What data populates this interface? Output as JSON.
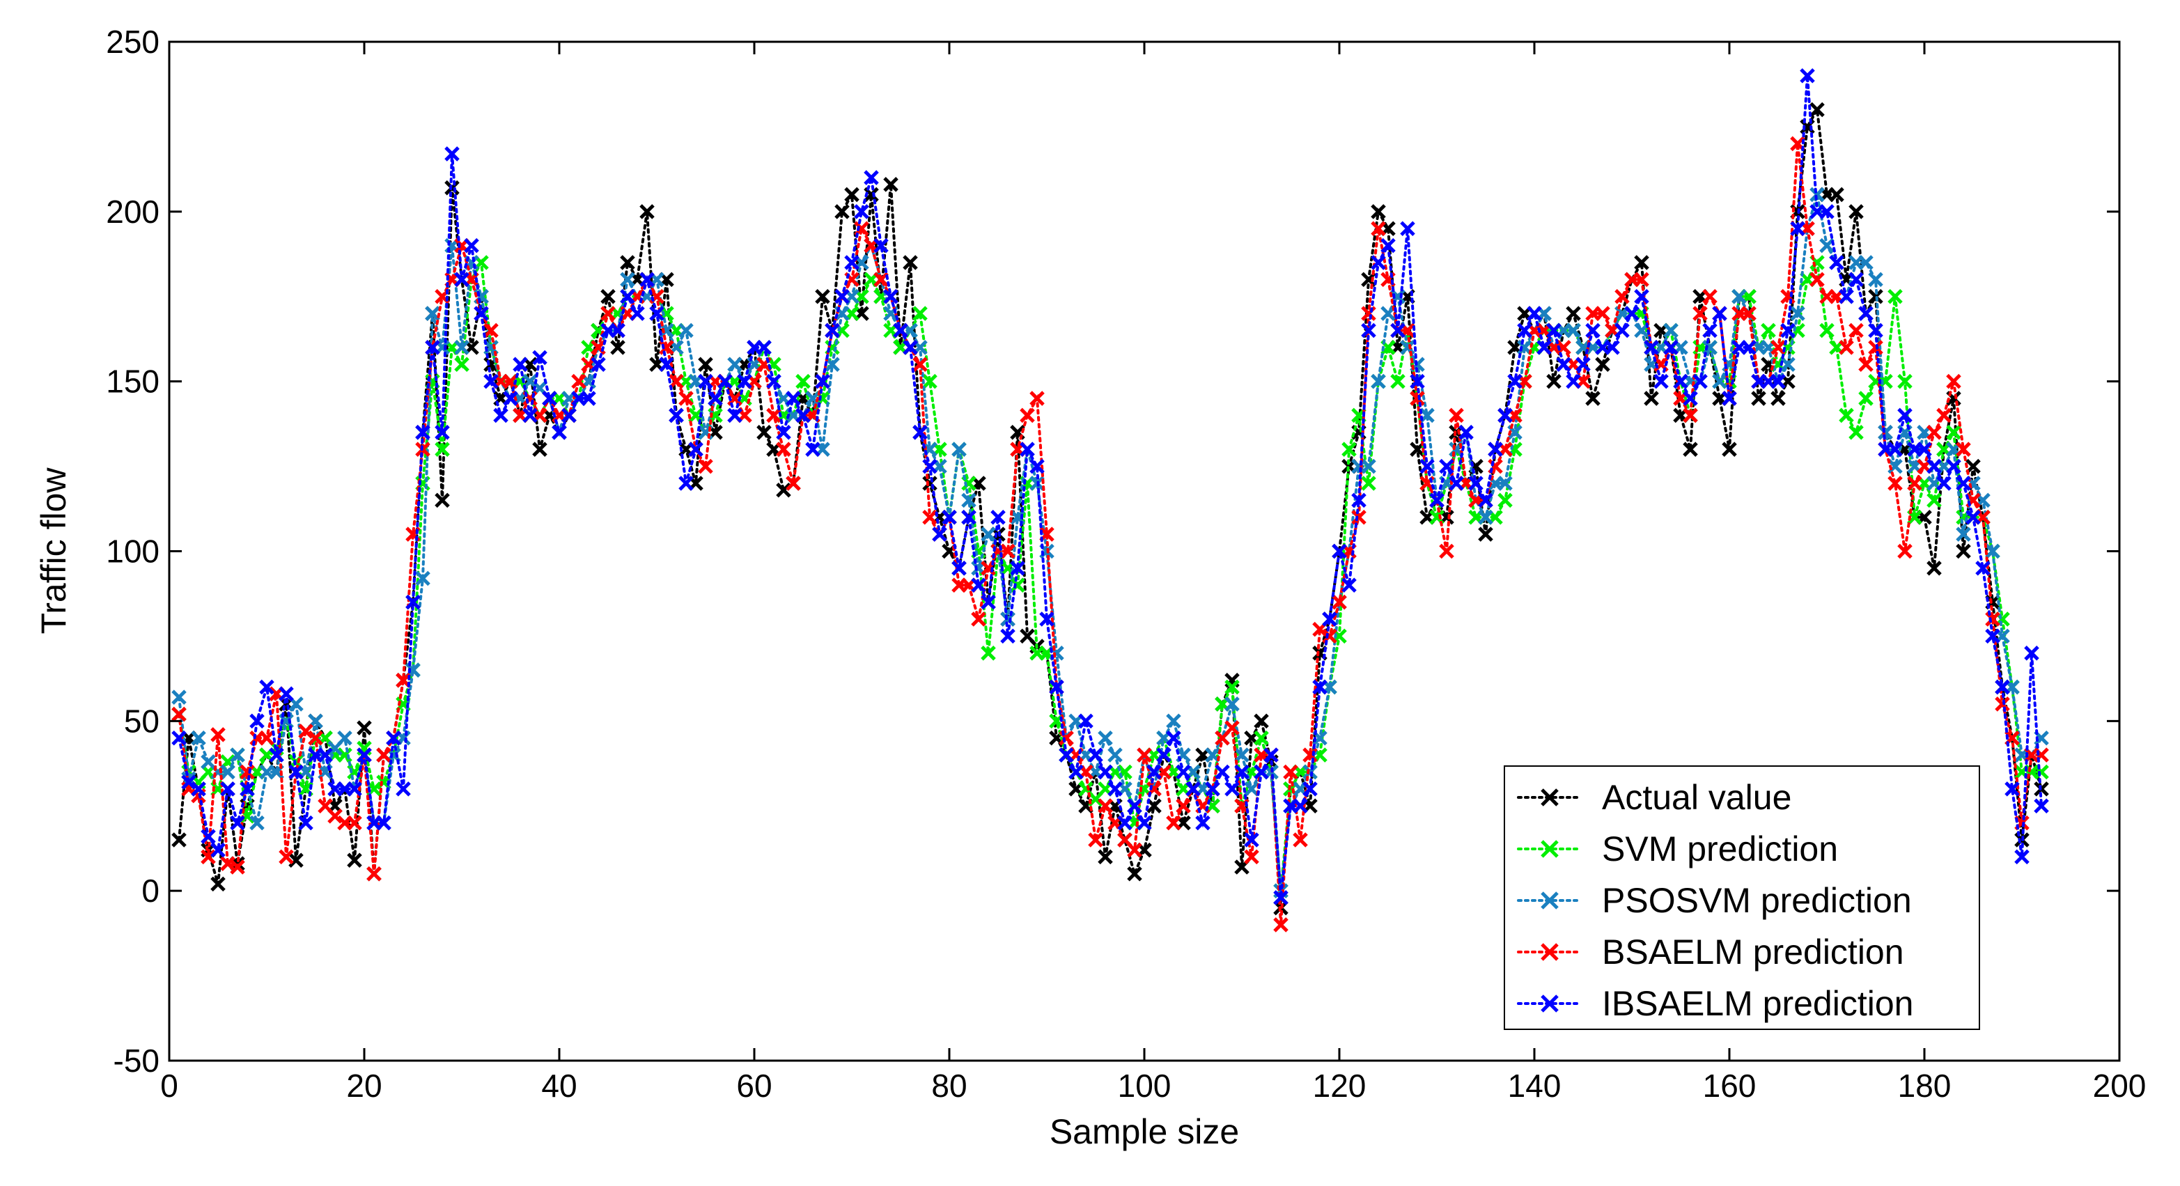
{
  "chart_data": {
    "type": "line",
    "title": "",
    "xlabel": "Sample size",
    "ylabel": "Traffic flow",
    "xlim": [
      0,
      200
    ],
    "ylim": [
      -50,
      250
    ],
    "xticks": [
      0,
      20,
      40,
      60,
      80,
      100,
      120,
      140,
      160,
      180,
      200
    ],
    "yticks": [
      -50,
      0,
      50,
      100,
      150,
      200,
      250
    ],
    "grid": false,
    "legend_position": "bottom-right",
    "marker": "x",
    "line_style": "dotted",
    "x": [
      1,
      2,
      3,
      4,
      5,
      6,
      7,
      8,
      9,
      10,
      11,
      12,
      13,
      14,
      15,
      16,
      17,
      18,
      19,
      20,
      21,
      22,
      23,
      24,
      25,
      26,
      27,
      28,
      29,
      30,
      31,
      32,
      33,
      34,
      35,
      36,
      37,
      38,
      39,
      40,
      41,
      42,
      43,
      44,
      45,
      46,
      47,
      48,
      49,
      50,
      51,
      52,
      53,
      54,
      55,
      56,
      57,
      58,
      59,
      60,
      61,
      62,
      63,
      64,
      65,
      66,
      67,
      68,
      69,
      70,
      71,
      72,
      73,
      74,
      75,
      76,
      77,
      78,
      79,
      80,
      81,
      82,
      83,
      84,
      85,
      86,
      87,
      88,
      89,
      90,
      91,
      92,
      93,
      94,
      95,
      96,
      97,
      98,
      99,
      100,
      101,
      102,
      103,
      104,
      105,
      106,
      107,
      108,
      109,
      110,
      111,
      112,
      113,
      114,
      115,
      116,
      117,
      118,
      119,
      120,
      121,
      122,
      123,
      124,
      125,
      126,
      127,
      128,
      129,
      130,
      131,
      132,
      133,
      134,
      135,
      136,
      137,
      138,
      139,
      140,
      141,
      142,
      143,
      144,
      145,
      146,
      147,
      148,
      149,
      150,
      151,
      152,
      153,
      154,
      155,
      156,
      157,
      158,
      159,
      160,
      161,
      162,
      163,
      164,
      165,
      166,
      167,
      168,
      169,
      170,
      171,
      172,
      173,
      174,
      175,
      176,
      177,
      178,
      179,
      180,
      181,
      182,
      183,
      184,
      185,
      186,
      187,
      188,
      189,
      190,
      191,
      192
    ],
    "series": [
      {
        "name": "Actual value",
        "color": "#000000",
        "values": [
          15,
          45,
          30,
          12,
          2,
          30,
          8,
          25,
          35,
          40,
          35,
          55,
          9,
          30,
          50,
          45,
          25,
          30,
          9,
          48,
          5,
          40,
          45,
          62,
          85,
          135,
          170,
          115,
          207,
          180,
          160,
          175,
          155,
          145,
          150,
          140,
          155,
          130,
          140,
          135,
          140,
          145,
          150,
          165,
          175,
          160,
          185,
          180,
          200,
          155,
          180,
          140,
          130,
          120,
          155,
          135,
          150,
          145,
          155,
          160,
          135,
          130,
          118,
          120,
          145,
          140,
          175,
          165,
          200,
          205,
          170,
          205,
          175,
          208,
          160,
          185,
          135,
          120,
          110,
          100,
          95,
          110,
          120,
          85,
          105,
          80,
          135,
          75,
          72,
          70,
          45,
          40,
          30,
          25,
          35,
          10,
          25,
          15,
          5,
          12,
          25,
          40,
          35,
          20,
          30,
          40,
          25,
          55,
          62,
          7,
          45,
          50,
          38,
          -5,
          30,
          35,
          25,
          70,
          80,
          100,
          125,
          135,
          180,
          200,
          195,
          160,
          175,
          130,
          110,
          115,
          110,
          135,
          120,
          125,
          105,
          130,
          140,
          160,
          170,
          165,
          170,
          150,
          165,
          170,
          160,
          145,
          155,
          165,
          170,
          180,
          185,
          145,
          165,
          160,
          140,
          130,
          175,
          160,
          145,
          130,
          175,
          175,
          145,
          155,
          145,
          150,
          200,
          225,
          230,
          205,
          205,
          180,
          200,
          170,
          175,
          135,
          130,
          130,
          110,
          110,
          95,
          130,
          145,
          100,
          125,
          110,
          85,
          60,
          45,
          15,
          40,
          30
        ]
      },
      {
        "name": "SVM prediction",
        "color": "#00ee00",
        "values": [
          52,
          35,
          32,
          35,
          30,
          38,
          40,
          22,
          35,
          40,
          42,
          50,
          38,
          30,
          45,
          45,
          40,
          40,
          35,
          42,
          30,
          32,
          40,
          55,
          65,
          120,
          150,
          130,
          160,
          155,
          180,
          185,
          160,
          150,
          150,
          150,
          145,
          140,
          145,
          145,
          140,
          145,
          160,
          165,
          170,
          170,
          175,
          175,
          180,
          175,
          170,
          165,
          150,
          140,
          135,
          140,
          150,
          150,
          145,
          150,
          160,
          155,
          140,
          140,
          150,
          140,
          145,
          160,
          165,
          170,
          175,
          180,
          175,
          165,
          160,
          165,
          170,
          150,
          130,
          110,
          130,
          120,
          100,
          70,
          100,
          95,
          90,
          120,
          70,
          70,
          50,
          40,
          35,
          30,
          27,
          30,
          35,
          35,
          20,
          30,
          40,
          45,
          35,
          30,
          35,
          30,
          25,
          55,
          60,
          25,
          35,
          45,
          35,
          0,
          30,
          35,
          35,
          40,
          60,
          75,
          130,
          140,
          120,
          150,
          160,
          150,
          165,
          145,
          120,
          110,
          120,
          130,
          120,
          110,
          110,
          110,
          115,
          130,
          150,
          160,
          165,
          165,
          165,
          165,
          160,
          160,
          160,
          165,
          170,
          170,
          170,
          160,
          160,
          165,
          150,
          140,
          160,
          160,
          150,
          150,
          175,
          175,
          160,
          165,
          155,
          160,
          165,
          180,
          185,
          165,
          160,
          140,
          135,
          145,
          150,
          150,
          175,
          150,
          110,
          120,
          115,
          130,
          135,
          110,
          110,
          110,
          100,
          80,
          60,
          35,
          35,
          35
        ]
      },
      {
        "name": "PSOSVM prediction",
        "color": "#1a80c0",
        "values": [
          57,
          33,
          45,
          38,
          35,
          35,
          40,
          30,
          20,
          35,
          35,
          50,
          55,
          35,
          50,
          35,
          42,
          45,
          30,
          40,
          20,
          20,
          40,
          45,
          65,
          92,
          170,
          160,
          190,
          160,
          185,
          175,
          160,
          150,
          145,
          145,
          150,
          148,
          145,
          135,
          145,
          145,
          150,
          160,
          165,
          165,
          180,
          175,
          175,
          180,
          165,
          160,
          165,
          150,
          135,
          145,
          150,
          155,
          150,
          155,
          160,
          150,
          145,
          140,
          140,
          145,
          130,
          155,
          170,
          175,
          185,
          190,
          180,
          170,
          165,
          165,
          160,
          130,
          125,
          110,
          130,
          115,
          95,
          105,
          100,
          80,
          110,
          130,
          120,
          100,
          70,
          45,
          50,
          40,
          35,
          45,
          40,
          30,
          25,
          40,
          30,
          45,
          50,
          40,
          35,
          30,
          40,
          45,
          55,
          40,
          30,
          35,
          35,
          0,
          25,
          30,
          35,
          45,
          60,
          85,
          100,
          125,
          125,
          150,
          170,
          175,
          160,
          155,
          140,
          115,
          120,
          130,
          135,
          115,
          110,
          120,
          120,
          135,
          160,
          165,
          170,
          160,
          165,
          165,
          160,
          160,
          160,
          165,
          170,
          170,
          165,
          155,
          160,
          165,
          160,
          150,
          150,
          160,
          150,
          155,
          175,
          170,
          160,
          160,
          150,
          155,
          170,
          195,
          205,
          190,
          185,
          175,
          185,
          185,
          180,
          135,
          125,
          135,
          125,
          135,
          120,
          125,
          130,
          105,
          120,
          115,
          100,
          75,
          60,
          40,
          40,
          45
        ]
      },
      {
        "name": "BSAELM prediction",
        "color": "#ff0000",
        "values": [
          52,
          30,
          28,
          10,
          46,
          8,
          7,
          35,
          45,
          45,
          58,
          10,
          35,
          47,
          45,
          25,
          22,
          20,
          20,
          40,
          5,
          40,
          45,
          62,
          105,
          130,
          160,
          175,
          180,
          190,
          180,
          170,
          165,
          150,
          150,
          140,
          145,
          140,
          145,
          140,
          140,
          150,
          155,
          160,
          170,
          165,
          170,
          175,
          180,
          175,
          160,
          150,
          145,
          130,
          125,
          150,
          150,
          145,
          140,
          150,
          155,
          140,
          130,
          120,
          140,
          140,
          150,
          165,
          175,
          180,
          195,
          190,
          180,
          175,
          165,
          160,
          155,
          110,
          105,
          110,
          90,
          90,
          80,
          95,
          100,
          100,
          130,
          140,
          145,
          105,
          60,
          45,
          40,
          35,
          15,
          25,
          20,
          15,
          12,
          40,
          30,
          35,
          20,
          25,
          30,
          25,
          30,
          45,
          48,
          25,
          10,
          40,
          40,
          -10,
          35,
          15,
          40,
          77,
          75,
          85,
          100,
          110,
          170,
          195,
          180,
          165,
          165,
          145,
          120,
          115,
          100,
          140,
          120,
          115,
          115,
          125,
          130,
          140,
          150,
          165,
          165,
          160,
          160,
          155,
          150,
          170,
          170,
          165,
          175,
          180,
          180,
          160,
          155,
          160,
          145,
          140,
          170,
          175,
          170,
          145,
          170,
          170,
          150,
          150,
          160,
          175,
          220,
          195,
          180,
          175,
          175,
          160,
          165,
          155,
          160,
          130,
          120,
          100,
          120,
          125,
          135,
          140,
          150,
          130,
          115,
          110,
          80,
          55,
          45,
          20,
          40,
          40
        ]
      },
      {
        "name": "IBSAELM prediction",
        "color": "#0000ff",
        "values": [
          45,
          32,
          30,
          16,
          12,
          30,
          20,
          30,
          50,
          60,
          40,
          58,
          35,
          20,
          40,
          40,
          30,
          30,
          30,
          40,
          20,
          20,
          45,
          30,
          85,
          135,
          160,
          135,
          217,
          180,
          190,
          170,
          150,
          140,
          145,
          155,
          140,
          157,
          145,
          135,
          140,
          145,
          145,
          155,
          165,
          165,
          175,
          170,
          180,
          170,
          155,
          140,
          120,
          130,
          150,
          145,
          150,
          140,
          150,
          160,
          160,
          150,
          135,
          145,
          140,
          130,
          150,
          165,
          175,
          185,
          200,
          210,
          190,
          175,
          165,
          160,
          135,
          125,
          105,
          110,
          95,
          110,
          90,
          85,
          110,
          75,
          95,
          130,
          125,
          80,
          60,
          40,
          35,
          50,
          40,
          35,
          30,
          20,
          25,
          20,
          35,
          40,
          45,
          35,
          30,
          20,
          30,
          35,
          30,
          35,
          15,
          35,
          40,
          -2,
          25,
          25,
          30,
          60,
          80,
          100,
          90,
          115,
          165,
          185,
          190,
          165,
          195,
          150,
          125,
          115,
          125,
          120,
          135,
          120,
          115,
          130,
          140,
          150,
          165,
          170,
          160,
          165,
          155,
          150,
          155,
          165,
          160,
          160,
          165,
          170,
          175,
          160,
          150,
          160,
          150,
          145,
          150,
          165,
          170,
          145,
          160,
          160,
          150,
          150,
          150,
          165,
          195,
          240,
          200,
          200,
          185,
          175,
          180,
          170,
          165,
          130,
          130,
          140,
          130,
          130,
          125,
          120,
          125,
          120,
          110,
          95,
          75,
          60,
          30,
          10,
          70,
          25
        ]
      }
    ]
  }
}
